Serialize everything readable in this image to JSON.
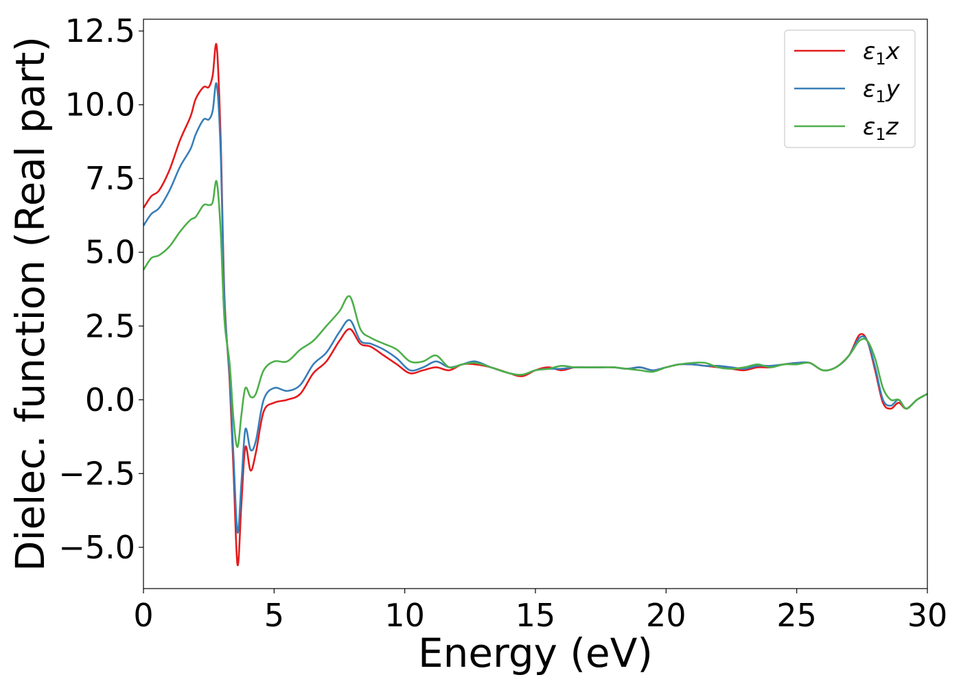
{
  "chart_data": {
    "type": "line",
    "title": "",
    "xlabel": "Energy (eV)",
    "ylabel": "Dielec. function (Real part)",
    "xlim": [
      0,
      30
    ],
    "ylim": [
      -6.4,
      12.9
    ],
    "xticks": [
      0,
      5,
      10,
      15,
      20,
      25,
      30
    ],
    "xtick_labels": [
      "0",
      "5",
      "10",
      "15",
      "20",
      "25",
      "30"
    ],
    "yticks": [
      -5.0,
      -2.5,
      0.0,
      2.5,
      5.0,
      7.5,
      10.0,
      12.5
    ],
    "ytick_labels": [
      "−5.0",
      "−2.5",
      "0.0",
      "2.5",
      "5.0",
      "7.5",
      "10.0",
      "12.5"
    ],
    "grid": false,
    "legend_position": "top-right",
    "series": [
      {
        "name": "ε₁x",
        "legend_main": "ε",
        "legend_sub": "1",
        "legend_tail": "x",
        "color": "#e41a1c",
        "x": [
          0,
          0.3,
          0.6,
          1.0,
          1.4,
          1.8,
          2.0,
          2.3,
          2.5,
          2.65,
          2.8,
          2.95,
          3.1,
          3.3,
          3.45,
          3.6,
          3.75,
          3.9,
          4.1,
          4.3,
          4.6,
          5.0,
          5.5,
          6.0,
          6.5,
          7.0,
          7.5,
          7.9,
          8.3,
          8.7,
          9.2,
          9.7,
          10.2,
          10.7,
          11.2,
          11.7,
          12.2,
          12.7,
          13.3,
          14.0,
          14.5,
          15.0,
          15.5,
          16.0,
          16.5,
          17.0,
          17.5,
          18.0,
          18.5,
          19.0,
          19.5,
          20.0,
          20.5,
          21.0,
          21.5,
          22.0,
          22.5,
          23.0,
          23.5,
          24.0,
          24.5,
          25.0,
          25.5,
          26.0,
          26.5,
          27.0,
          27.4,
          27.7,
          28.0,
          28.3,
          28.6,
          28.9,
          29.2,
          29.6,
          30.0
        ],
        "y": [
          6.5,
          6.9,
          7.1,
          7.8,
          8.8,
          9.6,
          10.2,
          10.6,
          10.6,
          11.0,
          12.0,
          9.0,
          3.5,
          0.6,
          -2.5,
          -5.6,
          -3.5,
          -1.6,
          -2.4,
          -1.8,
          -0.4,
          -0.1,
          0.0,
          0.2,
          0.9,
          1.3,
          2.0,
          2.4,
          1.9,
          1.8,
          1.5,
          1.2,
          0.9,
          1.0,
          1.1,
          1.0,
          1.2,
          1.2,
          1.1,
          0.9,
          0.8,
          1.0,
          1.1,
          1.0,
          1.1,
          1.1,
          1.1,
          1.1,
          1.05,
          1.1,
          1.0,
          1.1,
          1.2,
          1.2,
          1.15,
          1.1,
          1.05,
          1.0,
          1.1,
          1.1,
          1.2,
          1.25,
          1.25,
          1.0,
          1.1,
          1.5,
          2.2,
          2.0,
          1.0,
          -0.1,
          -0.3,
          -0.1,
          -0.3,
          0.0,
          0.2
        ]
      },
      {
        "name": "ε₁y",
        "legend_main": "ε",
        "legend_sub": "1",
        "legend_tail": "y",
        "color": "#377eb8",
        "x": [
          0,
          0.3,
          0.6,
          1.0,
          1.4,
          1.8,
          2.0,
          2.3,
          2.5,
          2.65,
          2.8,
          2.95,
          3.1,
          3.3,
          3.45,
          3.6,
          3.75,
          3.9,
          4.1,
          4.3,
          4.6,
          5.0,
          5.5,
          6.0,
          6.5,
          7.0,
          7.5,
          7.9,
          8.3,
          8.7,
          9.2,
          9.7,
          10.2,
          10.7,
          11.2,
          11.7,
          12.2,
          12.7,
          13.3,
          14.0,
          14.5,
          15.0,
          15.5,
          16.0,
          16.5,
          17.0,
          17.5,
          18.0,
          18.5,
          19.0,
          19.5,
          20.0,
          20.5,
          21.0,
          21.5,
          22.0,
          22.5,
          23.0,
          23.5,
          24.0,
          24.5,
          25.0,
          25.5,
          26.0,
          26.5,
          27.0,
          27.4,
          27.7,
          28.0,
          28.3,
          28.6,
          28.9,
          29.2,
          29.6,
          30.0
        ],
        "y": [
          5.9,
          6.3,
          6.5,
          7.1,
          7.9,
          8.5,
          9.0,
          9.5,
          9.5,
          9.8,
          10.7,
          8.5,
          3.3,
          0.8,
          -2.0,
          -4.5,
          -2.8,
          -1.0,
          -1.7,
          -1.4,
          0.0,
          0.4,
          0.3,
          0.5,
          1.2,
          1.6,
          2.3,
          2.7,
          2.0,
          1.9,
          1.7,
          1.4,
          1.0,
          1.1,
          1.3,
          1.1,
          1.2,
          1.3,
          1.1,
          0.9,
          0.85,
          1.0,
          1.05,
          1.05,
          1.1,
          1.1,
          1.1,
          1.1,
          1.05,
          1.1,
          1.0,
          1.1,
          1.2,
          1.2,
          1.15,
          1.15,
          1.1,
          1.05,
          1.15,
          1.15,
          1.2,
          1.25,
          1.25,
          1.0,
          1.1,
          1.5,
          2.1,
          2.0,
          1.1,
          0.0,
          -0.2,
          0.0,
          -0.3,
          0.0,
          0.2
        ]
      },
      {
        "name": "ε₁z",
        "legend_main": "ε",
        "legend_sub": "1",
        "legend_tail": "z",
        "color": "#4daf4a",
        "x": [
          0,
          0.3,
          0.6,
          1.0,
          1.4,
          1.8,
          2.0,
          2.3,
          2.5,
          2.65,
          2.8,
          2.95,
          3.1,
          3.3,
          3.45,
          3.6,
          3.75,
          3.9,
          4.1,
          4.3,
          4.6,
          5.0,
          5.5,
          6.0,
          6.5,
          7.0,
          7.5,
          7.9,
          8.3,
          8.7,
          9.2,
          9.7,
          10.2,
          10.7,
          11.2,
          11.7,
          12.2,
          12.7,
          13.3,
          14.0,
          14.5,
          15.0,
          15.5,
          16.0,
          16.5,
          17.0,
          17.5,
          18.0,
          18.5,
          19.0,
          19.5,
          20.0,
          20.5,
          21.0,
          21.5,
          22.0,
          22.5,
          23.0,
          23.5,
          24.0,
          24.5,
          25.0,
          25.5,
          26.0,
          26.5,
          27.0,
          27.4,
          27.7,
          28.0,
          28.3,
          28.6,
          28.9,
          29.2,
          29.6,
          30.0
        ],
        "y": [
          4.4,
          4.8,
          4.9,
          5.2,
          5.7,
          6.1,
          6.2,
          6.6,
          6.6,
          6.7,
          7.4,
          5.8,
          2.7,
          1.2,
          -0.7,
          -1.6,
          -0.5,
          0.4,
          0.1,
          0.2,
          1.0,
          1.3,
          1.3,
          1.7,
          2.0,
          2.5,
          3.0,
          3.5,
          2.4,
          2.1,
          1.9,
          1.7,
          1.3,
          1.3,
          1.5,
          1.1,
          1.2,
          1.25,
          1.1,
          0.9,
          0.85,
          1.0,
          1.05,
          1.15,
          1.1,
          1.1,
          1.1,
          1.1,
          1.05,
          1.0,
          0.95,
          1.1,
          1.2,
          1.25,
          1.25,
          1.1,
          1.05,
          1.1,
          1.2,
          1.1,
          1.2,
          1.2,
          1.25,
          1.0,
          1.1,
          1.5,
          2.0,
          2.0,
          1.4,
          0.4,
          0.0,
          0.0,
          -0.3,
          0.0,
          0.2
        ]
      }
    ]
  }
}
